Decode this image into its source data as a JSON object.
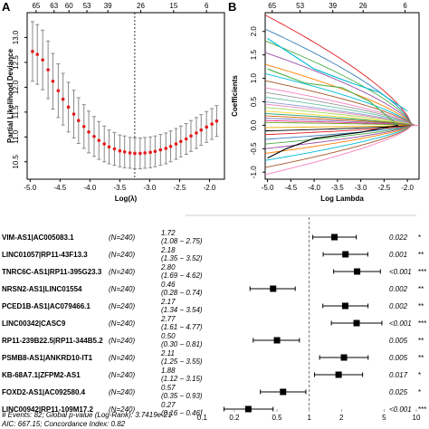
{
  "chart_data": [
    {
      "type": "scatter",
      "panel_label": "A",
      "xlabel": "Log(λ)",
      "ylabel": "Partial Likelihood Deviance",
      "xlim": [
        -5.05,
        -1.75
      ],
      "ylim": [
        10.15,
        13.5
      ],
      "x_ticks": [
        "-5.0",
        "-4.5",
        "-4.0",
        "-3.5",
        "-3.0",
        "-2.5",
        "-2.0"
      ],
      "x_tick_values": [
        -5.0,
        -4.5,
        -4.0,
        -3.5,
        -3.0,
        -2.5,
        -2.0
      ],
      "y_ticks": [
        "10.5",
        "11.0",
        "11.5",
        "12.0",
        "12.5",
        "13.0"
      ],
      "y_tick_values": [
        10.5,
        11.0,
        11.5,
        12.0,
        12.5,
        13.0
      ],
      "top_ticks": [
        "65",
        "63",
        "60",
        "53",
        "39",
        "26",
        "15",
        "6"
      ],
      "top_tick_values": [
        -4.9,
        -4.6,
        -4.35,
        -4.05,
        -3.7,
        -3.15,
        -2.6,
        -2.05
      ],
      "lambda_min": -3.25,
      "grid": false,
      "points": [
        {
          "x": -4.96,
          "y": 12.72,
          "lo": 12.12,
          "hi": 13.32
        },
        {
          "x": -4.88,
          "y": 12.66,
          "lo": 12.06,
          "hi": 13.26
        },
        {
          "x": -4.79,
          "y": 12.55,
          "lo": 11.95,
          "hi": 13.15
        },
        {
          "x": -4.7,
          "y": 12.35,
          "lo": 11.77,
          "hi": 12.93
        },
        {
          "x": -4.62,
          "y": 12.12,
          "lo": 11.56,
          "hi": 12.68
        },
        {
          "x": -4.53,
          "y": 11.93,
          "lo": 11.39,
          "hi": 12.47
        },
        {
          "x": -4.45,
          "y": 11.76,
          "lo": 11.24,
          "hi": 12.28
        },
        {
          "x": -4.36,
          "y": 11.6,
          "lo": 11.1,
          "hi": 12.1
        },
        {
          "x": -4.27,
          "y": 11.46,
          "lo": 10.98,
          "hi": 11.94
        },
        {
          "x": -4.19,
          "y": 11.33,
          "lo": 10.87,
          "hi": 11.79
        },
        {
          "x": -4.1,
          "y": 11.21,
          "lo": 10.77,
          "hi": 11.65
        },
        {
          "x": -4.02,
          "y": 11.1,
          "lo": 10.68,
          "hi": 11.52
        },
        {
          "x": -3.93,
          "y": 11.01,
          "lo": 10.61,
          "hi": 11.41
        },
        {
          "x": -3.85,
          "y": 10.93,
          "lo": 10.55,
          "hi": 11.31
        },
        {
          "x": -3.76,
          "y": 10.86,
          "lo": 10.5,
          "hi": 11.22
        },
        {
          "x": -3.68,
          "y": 10.8,
          "lo": 10.46,
          "hi": 11.14
        },
        {
          "x": -3.59,
          "y": 10.76,
          "lo": 10.43,
          "hi": 11.09
        },
        {
          "x": -3.5,
          "y": 10.72,
          "lo": 10.4,
          "hi": 11.04
        },
        {
          "x": -3.42,
          "y": 10.7,
          "lo": 10.38,
          "hi": 11.02
        },
        {
          "x": -3.33,
          "y": 10.68,
          "lo": 10.37,
          "hi": 10.99
        },
        {
          "x": -3.25,
          "y": 10.67,
          "lo": 10.36,
          "hi": 10.98
        },
        {
          "x": -3.16,
          "y": 10.67,
          "lo": 10.36,
          "hi": 10.98
        },
        {
          "x": -3.08,
          "y": 10.68,
          "lo": 10.37,
          "hi": 10.99
        },
        {
          "x": -2.99,
          "y": 10.69,
          "lo": 10.38,
          "hi": 11.0
        },
        {
          "x": -2.91,
          "y": 10.71,
          "lo": 10.4,
          "hi": 11.02
        },
        {
          "x": -2.82,
          "y": 10.74,
          "lo": 10.43,
          "hi": 11.05
        },
        {
          "x": -2.73,
          "y": 10.77,
          "lo": 10.46,
          "hi": 11.08
        },
        {
          "x": -2.65,
          "y": 10.81,
          "lo": 10.5,
          "hi": 11.12
        },
        {
          "x": -2.56,
          "y": 10.86,
          "lo": 10.55,
          "hi": 11.17
        },
        {
          "x": -2.48,
          "y": 10.91,
          "lo": 10.6,
          "hi": 11.22
        },
        {
          "x": -2.39,
          "y": 10.96,
          "lo": 10.65,
          "hi": 11.27
        },
        {
          "x": -2.31,
          "y": 11.02,
          "lo": 10.71,
          "hi": 11.33
        },
        {
          "x": -2.22,
          "y": 11.08,
          "lo": 10.77,
          "hi": 11.39
        },
        {
          "x": -2.14,
          "y": 11.14,
          "lo": 10.83,
          "hi": 11.45
        },
        {
          "x": -2.05,
          "y": 11.2,
          "lo": 10.89,
          "hi": 11.51
        },
        {
          "x": -1.96,
          "y": 11.26,
          "lo": 10.95,
          "hi": 11.57
        },
        {
          "x": -1.88,
          "y": 11.32,
          "lo": 11.01,
          "hi": 11.63
        }
      ],
      "colors": {
        "point": "#e41a1c",
        "error_bar": "#888888",
        "ref_line": "#000000"
      }
    },
    {
      "type": "line",
      "panel_label": "B",
      "xlabel": "Log Lambda",
      "ylabel": "Coefficients",
      "xlim": [
        -5.05,
        -1.75
      ],
      "ylim": [
        -1.15,
        2.4
      ],
      "x_ticks": [
        "-5.0",
        "-4.5",
        "-4.0",
        "-3.5",
        "-3.0",
        "-2.5",
        "-2.0"
      ],
      "x_tick_values": [
        -5.0,
        -4.5,
        -4.0,
        -3.5,
        -3.0,
        -2.5,
        -2.0
      ],
      "y_ticks": [
        "-1.0",
        "-0.5",
        "0.0",
        "0.5",
        "1.0",
        "1.5",
        "2.0"
      ],
      "y_tick_values": [
        -1.0,
        -0.5,
        0.0,
        0.5,
        1.0,
        1.5,
        2.0
      ],
      "top_ticks": [
        "65",
        "53",
        "39",
        "26",
        "6"
      ],
      "top_tick_values": [
        -4.9,
        -4.3,
        -3.6,
        -2.95,
        -2.05
      ],
      "grid": false,
      "series": [
        {
          "start": 2.35,
          "end": -2.8,
          "color": "#e41a1c"
        },
        {
          "start": 2.05,
          "end": -2.6,
          "color": "#377eb8"
        },
        {
          "start": 1.8,
          "end": -2.5,
          "color": "#4daf4a"
        },
        {
          "start": 1.55,
          "end": -2.3,
          "color": "#984ea3"
        },
        {
          "start": 1.3,
          "end": -2.2,
          "color": "#ff7f00"
        },
        {
          "start": 1.1,
          "end": -2.1,
          "color": "#00bcd4"
        },
        {
          "start": 0.95,
          "end": -2.0,
          "color": "#a65628"
        },
        {
          "start": 0.8,
          "end": -2.4,
          "color": "#f781bf"
        },
        {
          "start": 0.7,
          "end": -1.9,
          "color": "#999999"
        },
        {
          "start": 0.6,
          "end": -2.0,
          "color": "#66c2a5"
        },
        {
          "start": 0.5,
          "end": -1.95,
          "color": "#8da0cb"
        },
        {
          "start": 0.45,
          "end": -2.6,
          "color": "#e78ac3"
        },
        {
          "start": 0.38,
          "end": -2.0,
          "color": "#a6d854"
        },
        {
          "start": 0.3,
          "end": -1.9,
          "color": "#ffd92f"
        },
        {
          "start": 0.25,
          "end": -2.05,
          "color": "#1b9e77"
        },
        {
          "start": 0.2,
          "end": -2.2,
          "color": "#d95f02"
        },
        {
          "start": 0.15,
          "end": -2.0,
          "color": "#7570b3"
        },
        {
          "start": 0.1,
          "end": -1.9,
          "color": "#e7298a"
        },
        {
          "start": 0.06,
          "end": -2.0,
          "color": "#66a61e"
        },
        {
          "start": -0.05,
          "end": -2.1,
          "color": "#e6ab02"
        },
        {
          "start": -0.12,
          "end": -1.95,
          "color": "#000000"
        },
        {
          "start": -0.2,
          "end": -2.0,
          "color": "#e41a1c"
        },
        {
          "start": -0.3,
          "end": -1.9,
          "color": "#377eb8"
        },
        {
          "start": -0.4,
          "end": -2.1,
          "color": "#4daf4a"
        },
        {
          "start": -0.5,
          "end": -2.0,
          "color": "#984ea3"
        },
        {
          "start": -0.6,
          "end": -2.3,
          "color": "#ff7f00"
        },
        {
          "start": -0.75,
          "end": -2.2,
          "color": "#00bcd4"
        },
        {
          "start": -0.9,
          "end": -2.5,
          "color": "#a65628"
        },
        {
          "start": -1.05,
          "end": -2.4,
          "color": "#f781bf"
        }
      ],
      "emphasized_series": [
        {
          "points": [
            [
              -5.0,
              1.85
            ],
            [
              -4.0,
              1.2
            ],
            [
              -3.2,
              0.9
            ],
            [
              -2.6,
              0.7
            ],
            [
              -2.0,
              0.3
            ]
          ],
          "color": "#00bcd4"
        },
        {
          "points": [
            [
              -5.0,
              1.2
            ],
            [
              -4.2,
              0.9
            ],
            [
              -3.4,
              0.8
            ],
            [
              -2.8,
              0.5
            ],
            [
              -2.2,
              0.0
            ]
          ],
          "color": "#4daf4a"
        },
        {
          "points": [
            [
              -5.0,
              -0.7
            ],
            [
              -4.6,
              -0.5
            ],
            [
              -4.0,
              -0.28
            ],
            [
              -3.0,
              -0.15
            ],
            [
              -2.2,
              0.0
            ]
          ],
          "color": "#000000"
        }
      ]
    },
    {
      "type": "forest",
      "scale": "log",
      "xlim": [
        0.07,
        10
      ],
      "x_ticks": [
        "0.1",
        "0.2",
        "0.5",
        "1",
        "2",
        "5",
        "10"
      ],
      "x_tick_values": [
        0.1,
        0.2,
        0.5,
        1,
        2,
        5,
        10
      ],
      "reference_value": 1,
      "rows": [
        {
          "label": "VIM-AS1|AC005083.1",
          "n": "(N=240)",
          "hr": "1.72",
          "ci": "(1.08 − 2.75)",
          "p": "0.022",
          "stars": "*",
          "hr_value": 1.72,
          "lo": 1.08,
          "hi": 2.75
        },
        {
          "label": "LINC01057|RP11-43F13.3",
          "n": "(N=240)",
          "hr": "2.18",
          "ci": "(1.35 − 3.52)",
          "p": "0.001",
          "stars": "**",
          "hr_value": 2.18,
          "lo": 1.35,
          "hi": 3.52
        },
        {
          "label": "TNRC6C-AS1|RP11-395G23.3",
          "n": "(N=240)",
          "hr": "2.80",
          "ci": "(1.69 − 4.62)",
          "p": "<0.001",
          "stars": "***",
          "hr_value": 2.8,
          "lo": 1.69,
          "hi": 4.62
        },
        {
          "label": "NRSN2-AS1|LINC01554",
          "n": "(N=240)",
          "hr": "0.46",
          "ci": "(0.28 − 0.74)",
          "p": "0.002",
          "stars": "**",
          "hr_value": 0.46,
          "lo": 0.28,
          "hi": 0.74
        },
        {
          "label": "PCED1B-AS1|AC079466.1",
          "n": "(N=240)",
          "hr": "2.17",
          "ci": "(1.34 − 3.54)",
          "p": "0.002",
          "stars": "**",
          "hr_value": 2.17,
          "lo": 1.34,
          "hi": 3.54
        },
        {
          "label": "LINC00342|CASC9",
          "n": "(N=240)",
          "hr": "2.77",
          "ci": "(1.61 − 4.77)",
          "p": "<0.001",
          "stars": "***",
          "hr_value": 2.77,
          "lo": 1.61,
          "hi": 4.77
        },
        {
          "label": "RP11-239B22.5|RP11-344B5.2",
          "n": "(N=240)",
          "hr": "0.50",
          "ci": "(0.30 − 0.81)",
          "p": "0.005",
          "stars": "**",
          "hr_value": 0.5,
          "lo": 0.3,
          "hi": 0.81
        },
        {
          "label": "PSMB8-AS1|ANKRD10-IT1",
          "n": "(N=240)",
          "hr": "2.11",
          "ci": "(1.25 − 3.55)",
          "p": "0.005",
          "stars": "**",
          "hr_value": 2.11,
          "lo": 1.25,
          "hi": 3.55
        },
        {
          "label": "KB-68A7.1|ZFPM2-AS1",
          "n": "(N=240)",
          "hr": "1.88",
          "ci": "(1.12 − 3.15)",
          "p": "0.017",
          "stars": "*",
          "hr_value": 1.88,
          "lo": 1.12,
          "hi": 3.15
        },
        {
          "label": "FOXD2-AS1|AC092580.4",
          "n": "(N=240)",
          "hr": "0.57",
          "ci": "(0.35 − 0.93)",
          "p": "0.025",
          "stars": "*",
          "hr_value": 0.57,
          "lo": 0.35,
          "hi": 0.93
        },
        {
          "label": "LINC00942|RP11-109M17.2",
          "n": "(N=240)",
          "hr": "0.27",
          "ci": "(0.16 − 0.46)",
          "p": "<0.001",
          "stars": "***",
          "hr_value": 0.27,
          "lo": 0.16,
          "hi": 0.46
        }
      ],
      "footer_line1": "# Events: 82; Global p-value (Log-Rank): 3.7419e-21",
      "footer_line2": "AIC: 667.15; Concordance Index: 0.82"
    }
  ]
}
